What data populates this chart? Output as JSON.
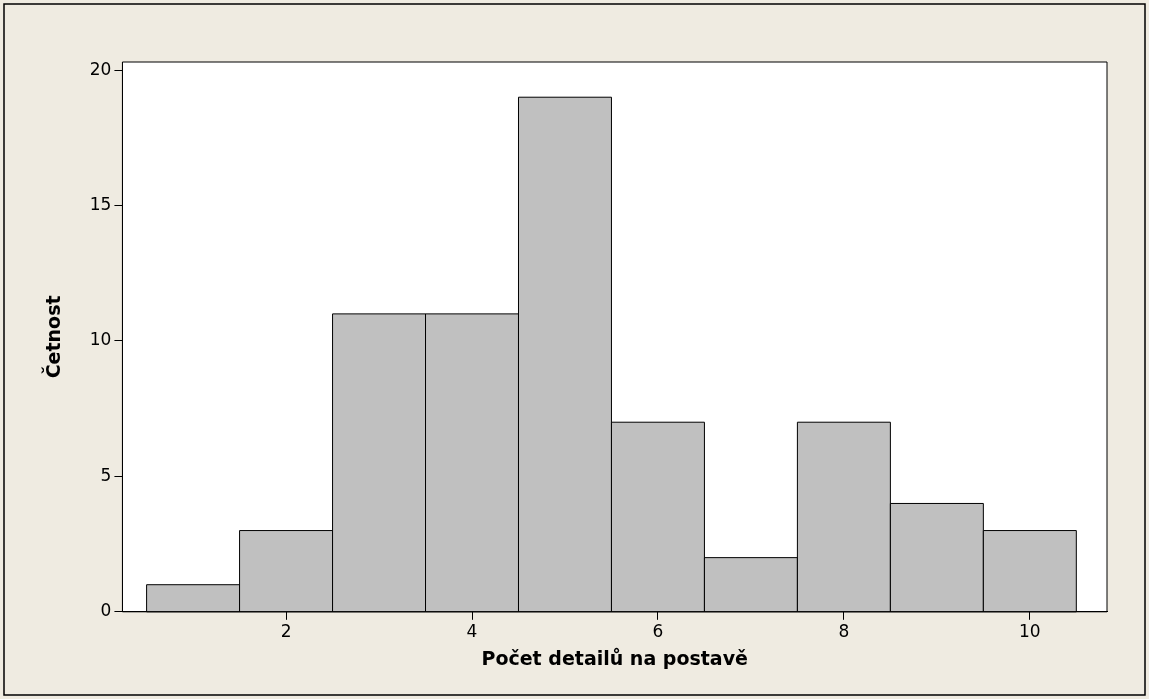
{
  "chart_data": {
    "type": "histogram",
    "xlabel": "Počet detailů na postavě",
    "ylabel": "Četnost",
    "bins": [
      0.5,
      1.5,
      2.5,
      3.5,
      4.5,
      5.5,
      6.5,
      7.5,
      8.5,
      9.5,
      10.5
    ],
    "values": [
      1,
      3,
      11,
      11,
      19,
      7,
      2,
      7,
      4,
      3
    ],
    "color": "#c0c0c0",
    "xlim": [
      0.24,
      10.83
    ],
    "xticks": [
      2,
      4,
      6,
      8,
      10
    ],
    "ylim": [
      0,
      20.3
    ],
    "yticks": [
      0,
      5,
      10,
      15,
      20
    ],
    "grid": false,
    "legend": false
  }
}
